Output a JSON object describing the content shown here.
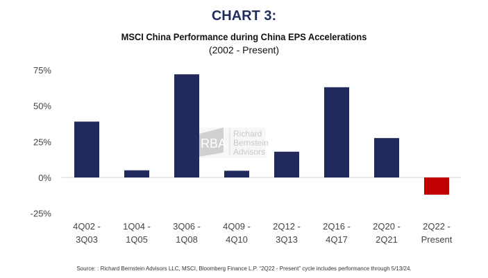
{
  "chart_data": {
    "type": "bar",
    "title": "CHART 3:",
    "subtitle": "MSCI China Performance during China EPS Accelerations",
    "subtitle2": "(2002 - Present)",
    "categories": [
      [
        "4Q02 -",
        "3Q03"
      ],
      [
        "1Q04 -",
        "1Q05"
      ],
      [
        "3Q06 -",
        "1Q08"
      ],
      [
        "4Q09 -",
        "4Q10"
      ],
      [
        "2Q12 -",
        "3Q13"
      ],
      [
        "2Q16 -",
        "4Q17"
      ],
      [
        "2Q20 -",
        "2Q21"
      ],
      [
        "2Q22 -",
        "Present"
      ]
    ],
    "values": [
      39,
      5,
      72,
      4.7,
      18,
      63,
      27.5,
      -12
    ],
    "colors": [
      "#212a5a",
      "#212a5a",
      "#212a5a",
      "#212a5a",
      "#212a5a",
      "#212a5a",
      "#212a5a",
      "#c00000"
    ],
    "yticks": [
      75,
      50,
      25,
      0,
      -25
    ],
    "ytick_labels": [
      "75%",
      "50%",
      "25%",
      "0%",
      "-25%"
    ],
    "ylim": [
      -25,
      75
    ],
    "xlabel": "",
    "ylabel": "",
    "grid": false
  },
  "watermark": {
    "logo": "RBA",
    "lines": [
      "Richard",
      "Bernstein",
      "Advisors"
    ]
  },
  "source": "Source: :  Richard Bernstein Advisors LLC, MSCI, Bloomberg Finance L.P. “2Q22 - Present” cycle includes performance through 5/13/24."
}
